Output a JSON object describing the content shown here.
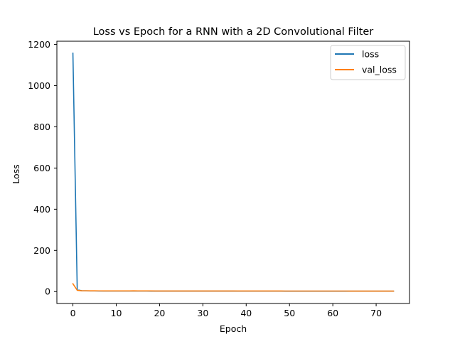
{
  "chart_data": {
    "type": "line",
    "title": "Loss vs Epoch for a RNN with a 2D Convolutional Filter",
    "xlabel": "Epoch",
    "ylabel": "Loss",
    "xlim": [
      -3.7,
      77.7
    ],
    "ylim": [
      -57.9,
      1215.9
    ],
    "xticks": [
      0,
      10,
      20,
      30,
      40,
      50,
      60,
      70
    ],
    "yticks": [
      0,
      200,
      400,
      600,
      800,
      1000,
      1200
    ],
    "grid": false,
    "legend_position": "top-right",
    "x": [
      0,
      1,
      2,
      3,
      4,
      5,
      6,
      7,
      8,
      9,
      10,
      11,
      12,
      13,
      14,
      15,
      16,
      17,
      18,
      19,
      20,
      21,
      22,
      23,
      24,
      25,
      26,
      27,
      28,
      29,
      30,
      31,
      32,
      33,
      34,
      35,
      36,
      37,
      38,
      39,
      40,
      41,
      42,
      43,
      44,
      45,
      46,
      47,
      48,
      49,
      50,
      51,
      52,
      53,
      54,
      55,
      56,
      57,
      58,
      59,
      60,
      61,
      62,
      63,
      64,
      65,
      66,
      67,
      68,
      69,
      70,
      71,
      72,
      73,
      74
    ],
    "series": [
      {
        "name": "loss",
        "color": "#1f77b4",
        "values": [
          1158,
          9,
          4,
          3.5,
          3.2,
          3,
          2.9,
          2.8,
          2.8,
          2.7,
          2.7,
          2.6,
          2.6,
          2.6,
          2.5,
          2.5,
          2.5,
          2.5,
          2.4,
          2.4,
          2.4,
          2.4,
          2.4,
          2.3,
          2.3,
          2.3,
          2.3,
          2.3,
          2.3,
          2.3,
          2.2,
          2.2,
          2.2,
          2.2,
          2.2,
          2.2,
          2.2,
          2.2,
          2.1,
          2.1,
          2.1,
          2.1,
          2.1,
          2.1,
          2.1,
          2.1,
          2.1,
          2.1,
          2.1,
          2,
          2,
          2,
          2,
          2,
          2,
          2,
          2,
          2,
          2,
          2,
          2,
          2,
          2,
          2,
          2,
          2,
          2,
          2,
          2,
          2,
          1.9,
          1.9,
          1.9,
          1.9,
          1.9
        ]
      },
      {
        "name": "val_loss",
        "color": "#ff7f0e",
        "values": [
          38,
          6,
          4,
          3.8,
          3.6,
          3.5,
          3.4,
          3.3,
          3.3,
          3.2,
          3.2,
          3.1,
          3.1,
          3.1,
          3.6,
          3,
          3,
          3,
          3,
          2.9,
          2.9,
          2.9,
          2.9,
          2.9,
          2.8,
          2.8,
          2.8,
          2.8,
          2.8,
          2.8,
          2.8,
          2.7,
          2.7,
          2.7,
          2.7,
          2.7,
          2.7,
          2.7,
          2.7,
          2.6,
          2.6,
          2.6,
          2.6,
          2.6,
          2.6,
          2.6,
          2.6,
          2.6,
          2.6,
          2.5,
          2.5,
          2.5,
          2.5,
          2.5,
          2.5,
          2.5,
          2.5,
          2.5,
          2.5,
          2.5,
          2.5,
          2.5,
          2.5,
          2.5,
          2.4,
          2.4,
          2.4,
          2.4,
          2.4,
          2.4,
          2.4,
          2.4,
          2.4,
          2.4,
          2.4
        ]
      }
    ]
  }
}
